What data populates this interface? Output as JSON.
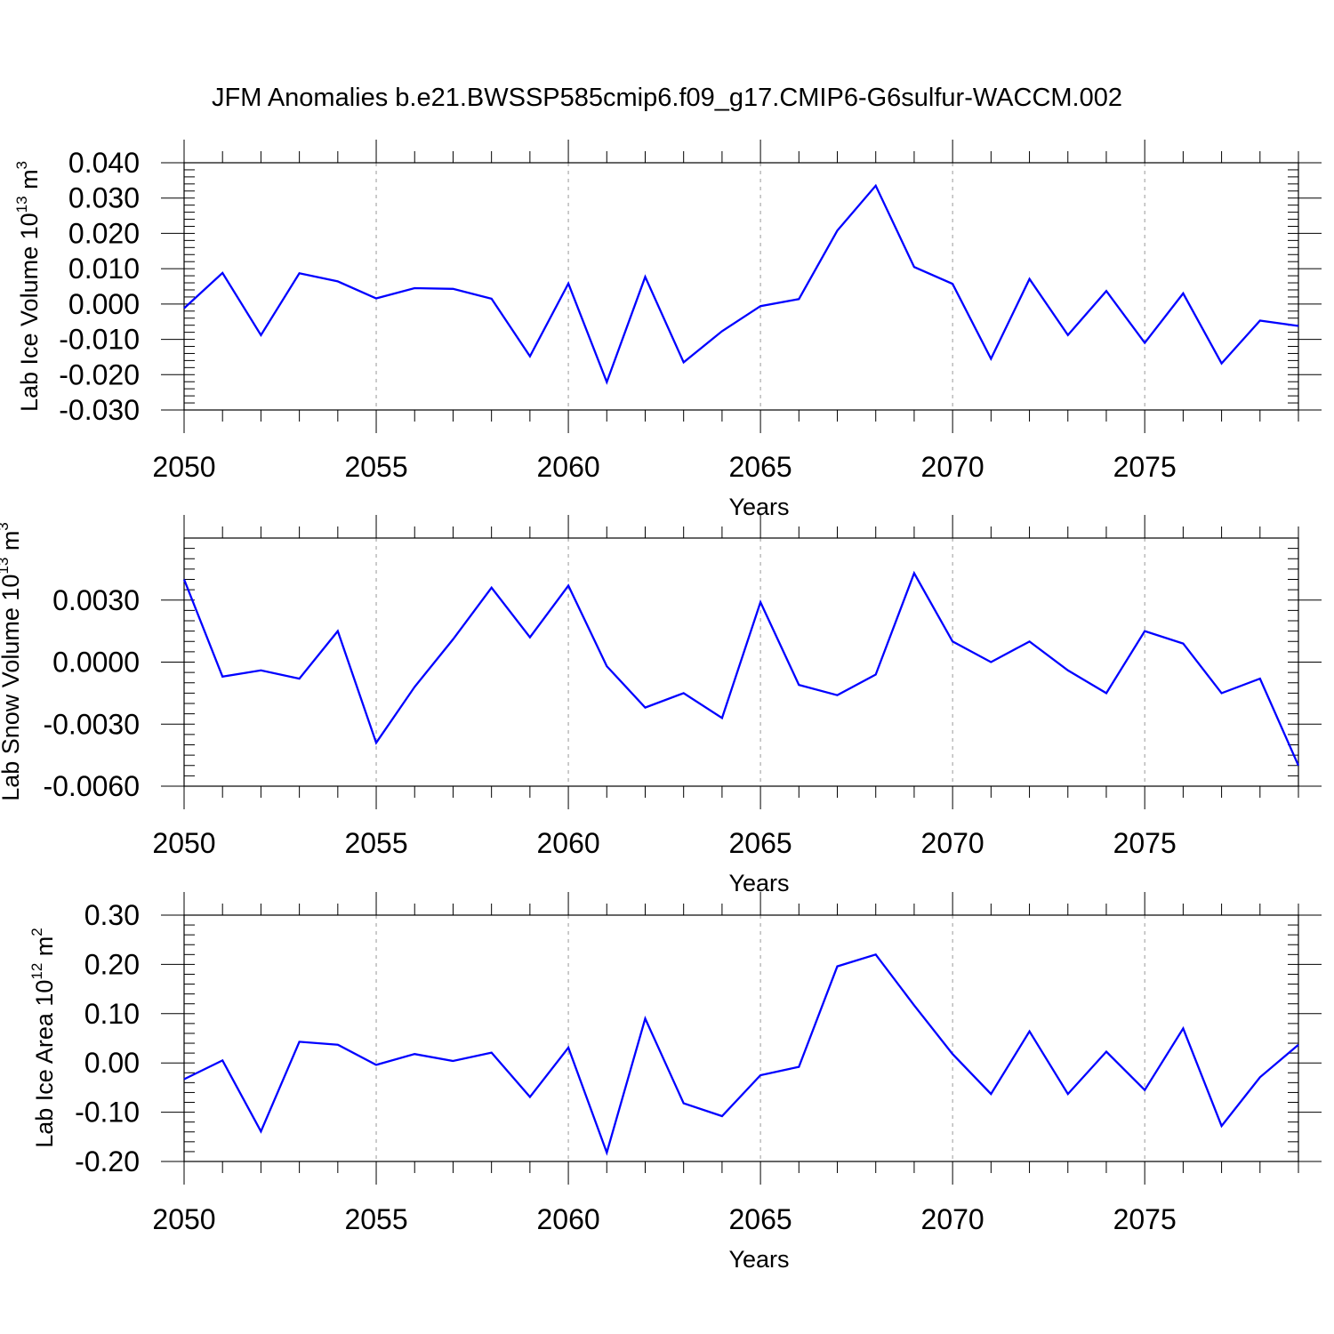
{
  "title": "JFM Anomalies b.e21.BWSSP585cmip6.f09_g17.CMIP6-G6sulfur-WACCM.002",
  "colors": {
    "line": "#0000ff",
    "grid": "#999999",
    "axis": "#000000"
  },
  "chart_data": [
    {
      "type": "line",
      "ylabel_main": "Lab Ice Volume 10",
      "ylabel_exp": "13",
      "ylabel_unit": " m",
      "ylabel_unit_exp": "3",
      "xlabel": "Years",
      "xlim": [
        2050,
        2079
      ],
      "ylim": [
        -0.03,
        0.04
      ],
      "xticks": [
        2050,
        2055,
        2060,
        2065,
        2070,
        2075
      ],
      "xtick_labels": [
        "2050",
        "2055",
        "2060",
        "2065",
        "2070",
        "2075"
      ],
      "yticks": [
        -0.03,
        -0.02,
        -0.01,
        0.0,
        0.01,
        0.02,
        0.03,
        0.04
      ],
      "ytick_labels": [
        "-0.030",
        "-0.020",
        "-0.010",
        "0.000",
        "0.010",
        "0.020",
        "0.030",
        "0.040"
      ],
      "x": [
        2050,
        2051,
        2052,
        2053,
        2054,
        2055,
        2056,
        2057,
        2058,
        2059,
        2060,
        2061,
        2062,
        2063,
        2064,
        2065,
        2066,
        2067,
        2068,
        2069,
        2070,
        2071,
        2072,
        2073,
        2074,
        2075,
        2076,
        2077,
        2078,
        2079
      ],
      "values": [
        -0.0012,
        0.0088,
        -0.0088,
        0.0087,
        0.0064,
        0.0016,
        0.0045,
        0.0043,
        0.0015,
        -0.0148,
        0.0058,
        -0.0221,
        0.0077,
        -0.0165,
        -0.0077,
        -0.0006,
        0.0014,
        0.0208,
        0.0335,
        0.0105,
        0.0057,
        -0.0155,
        0.0071,
        -0.0088,
        0.0037,
        -0.011,
        0.003,
        -0.0168,
        -0.0047,
        -0.0062
      ]
    },
    {
      "type": "line",
      "ylabel_main": "Lab Snow Volume 10",
      "ylabel_exp": "13",
      "ylabel_unit": " m",
      "ylabel_unit_exp": "3",
      "xlabel": "Years",
      "xlim": [
        2050,
        2079
      ],
      "ylim": [
        -0.006,
        0.006
      ],
      "xticks": [
        2050,
        2055,
        2060,
        2065,
        2070,
        2075
      ],
      "xtick_labels": [
        "2050",
        "2055",
        "2060",
        "2065",
        "2070",
        "2075"
      ],
      "yticks": [
        -0.006,
        -0.003,
        0.0,
        0.003
      ],
      "ytick_labels": [
        "-0.0060",
        "-0.0030",
        "0.0000",
        "0.0030"
      ],
      "x": [
        2050,
        2051,
        2052,
        2053,
        2054,
        2055,
        2056,
        2057,
        2058,
        2059,
        2060,
        2061,
        2062,
        2063,
        2064,
        2065,
        2066,
        2067,
        2068,
        2069,
        2070,
        2071,
        2072,
        2073,
        2074,
        2075,
        2076,
        2077,
        2078,
        2079
      ],
      "values": [
        0.004,
        -0.0007,
        -0.0004,
        -0.0008,
        0.0015,
        -0.0039,
        -0.0012,
        0.0011,
        0.0036,
        0.0012,
        0.0037,
        -0.0002,
        -0.0022,
        -0.0015,
        -0.0027,
        0.0029,
        -0.0011,
        -0.0016,
        -0.0006,
        0.0043,
        0.001,
        0.0,
        0.001,
        -0.0004,
        -0.0015,
        0.0015,
        0.0009,
        -0.0015,
        -0.0008,
        -0.005
      ]
    },
    {
      "type": "line",
      "ylabel_main": "Lab Ice Area 10",
      "ylabel_exp": "12",
      "ylabel_unit": " m",
      "ylabel_unit_exp": "2",
      "xlabel": "Years",
      "xlim": [
        2050,
        2079
      ],
      "ylim": [
        -0.2,
        0.3
      ],
      "xticks": [
        2050,
        2055,
        2060,
        2065,
        2070,
        2075
      ],
      "xtick_labels": [
        "2050",
        "2055",
        "2060",
        "2065",
        "2070",
        "2075"
      ],
      "yticks": [
        -0.2,
        -0.1,
        0.0,
        0.1,
        0.2,
        0.3
      ],
      "ytick_labels": [
        "-0.20",
        "-0.10",
        "0.00",
        "0.10",
        "0.20",
        "0.30"
      ],
      "x": [
        2050,
        2051,
        2052,
        2053,
        2054,
        2055,
        2056,
        2057,
        2058,
        2059,
        2060,
        2061,
        2062,
        2063,
        2064,
        2065,
        2066,
        2067,
        2068,
        2069,
        2070,
        2071,
        2072,
        2073,
        2074,
        2075,
        2076,
        2077,
        2078,
        2079
      ],
      "values": [
        -0.033,
        0.005,
        -0.139,
        0.043,
        0.037,
        -0.004,
        0.018,
        0.004,
        0.021,
        -0.069,
        0.031,
        -0.182,
        0.09,
        -0.082,
        -0.108,
        -0.025,
        -0.008,
        0.196,
        0.22,
        0.117,
        0.018,
        -0.063,
        0.064,
        -0.063,
        0.023,
        -0.055,
        0.07,
        -0.128,
        -0.029,
        0.037
      ]
    }
  ]
}
